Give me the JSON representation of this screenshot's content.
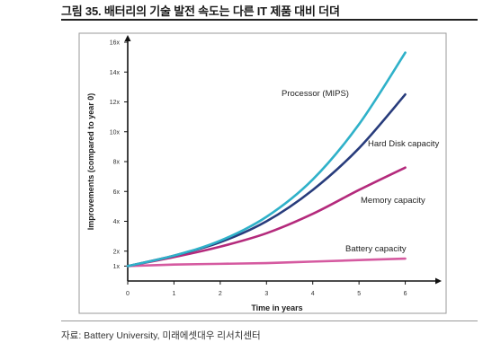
{
  "header": {
    "title": "그림 35. 배터리의 기술 발전 속도는 다른 IT 제품 대비 더뎌"
  },
  "footer": {
    "source": "자료: Battery University, 미래에셋대우 리서치센터"
  },
  "chart_data": {
    "type": "line",
    "xlabel": "Time in years",
    "ylabel": "Improvements (compared to year 0)",
    "x": [
      0,
      1,
      2,
      3,
      4,
      5,
      6
    ],
    "x_ticks": [
      "0",
      "1",
      "2",
      "3",
      "4",
      "5",
      "6"
    ],
    "xlim": [
      0,
      6.3
    ],
    "y_ticks": [
      {
        "v": 1,
        "label": "1x"
      },
      {
        "v": 2,
        "label": "2x"
      },
      {
        "v": 4,
        "label": "4x"
      },
      {
        "v": 6,
        "label": "6x"
      },
      {
        "v": 8,
        "label": "8x"
      },
      {
        "v": 10,
        "label": "10x"
      },
      {
        "v": 12,
        "label": "12x"
      },
      {
        "v": 14,
        "label": "14x"
      },
      {
        "v": 16,
        "label": "16x"
      }
    ],
    "ylim": [
      0,
      16
    ],
    "grid": false,
    "series": [
      {
        "name": "Processor (MIPS)",
        "color": "#2fb1c9",
        "values": [
          1,
          1.7,
          2.7,
          4.3,
          6.8,
          10.5,
          15.3
        ]
      },
      {
        "name": "Hard Disk capacity",
        "color": "#283c7c",
        "values": [
          1,
          1.7,
          2.6,
          4.0,
          6.1,
          8.9,
          12.5
        ]
      },
      {
        "name": "Memory capacity",
        "color": "#b42a7c",
        "values": [
          1,
          1.6,
          2.3,
          3.2,
          4.5,
          6.1,
          7.6
        ]
      },
      {
        "name": "Battery capacity",
        "color": "#d55aa0",
        "values": [
          1,
          1.1,
          1.15,
          1.2,
          1.3,
          1.4,
          1.5
        ]
      }
    ]
  }
}
